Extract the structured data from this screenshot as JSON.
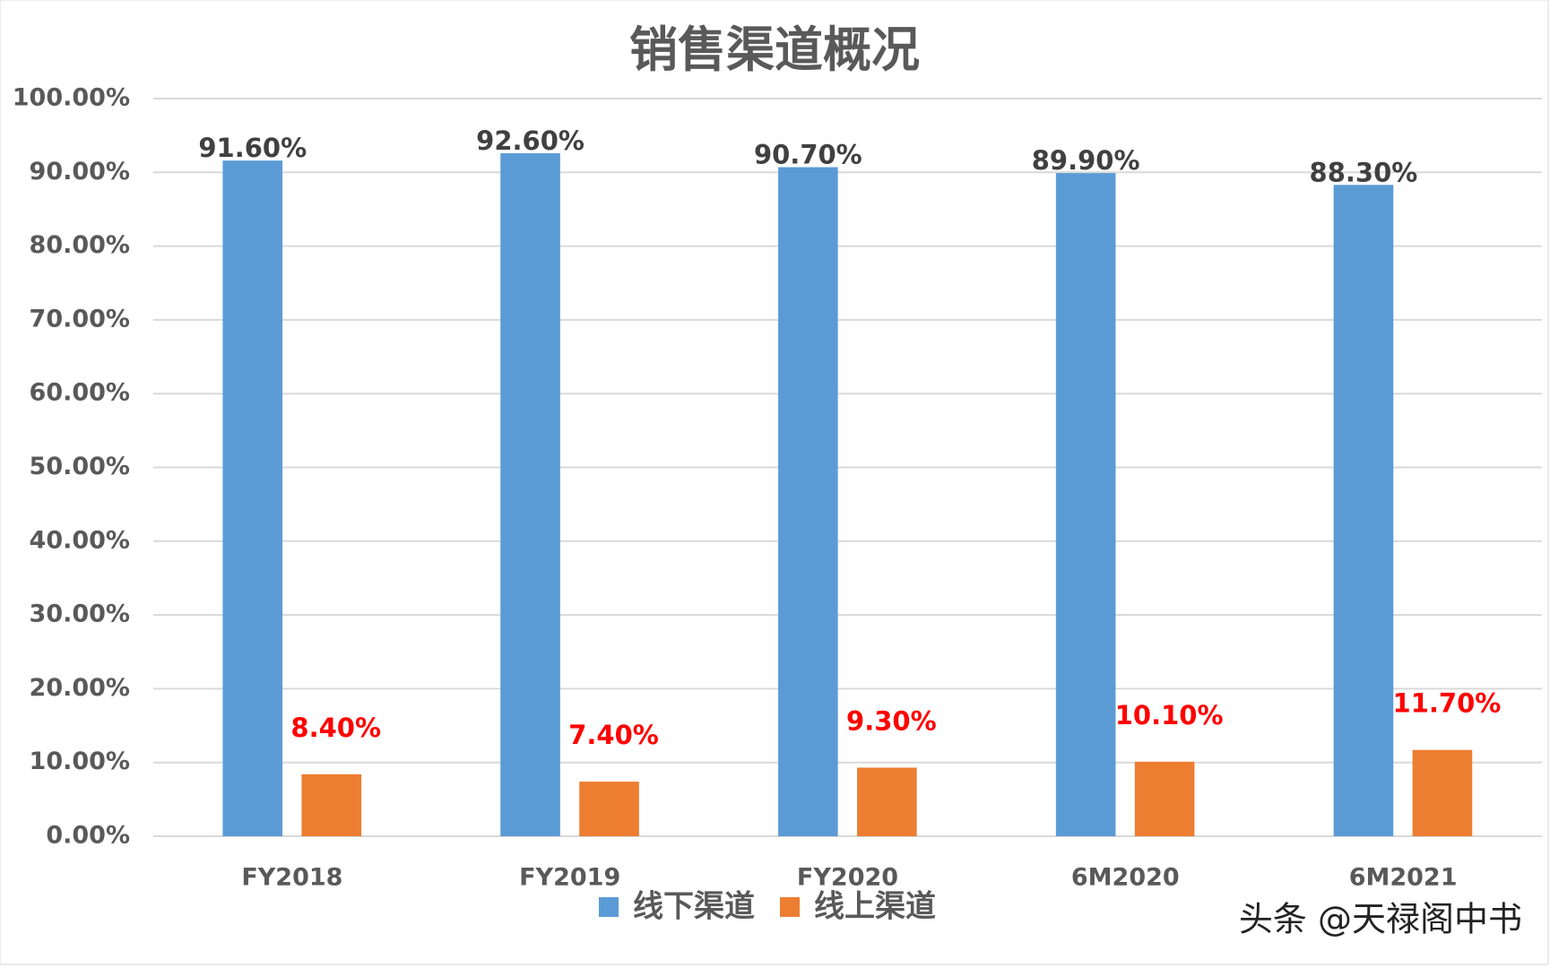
{
  "chart_data": {
    "type": "bar",
    "title": "销售渠道概况",
    "categories": [
      "FY2018",
      "FY2019",
      "FY2020",
      "6M2020",
      "6M2021"
    ],
    "series": [
      {
        "name": "线下渠道",
        "color": "#5b9bd5",
        "values": [
          91.6,
          92.6,
          90.7,
          89.9,
          88.3
        ],
        "value_labels": [
          "91.60%",
          "92.60%",
          "90.70%",
          "89.90%",
          "88.30%"
        ],
        "label_color": "#404040"
      },
      {
        "name": "线上渠道",
        "color": "#ed7d31",
        "values": [
          8.4,
          7.4,
          9.3,
          10.1,
          11.7
        ],
        "value_labels": [
          "8.40%",
          "7.40%",
          "9.30%",
          "10.10%",
          "11.70%"
        ],
        "label_color": "#ff0000"
      }
    ],
    "ylim": [
      0,
      100
    ],
    "yticks": [
      {
        "value": 0,
        "label": "0.00%"
      },
      {
        "value": 10,
        "label": "10.00%"
      },
      {
        "value": 20,
        "label": "20.00%"
      },
      {
        "value": 30,
        "label": "30.00%"
      },
      {
        "value": 40,
        "label": "40.00%"
      },
      {
        "value": 50,
        "label": "50.00%"
      },
      {
        "value": 60,
        "label": "60.00%"
      },
      {
        "value": 70,
        "label": "70.00%"
      },
      {
        "value": 80,
        "label": "80.00%"
      },
      {
        "value": 90,
        "label": "90.00%"
      },
      {
        "value": 100,
        "label": "100.00%"
      }
    ],
    "grid": true,
    "legend": "bottom",
    "watermark": "头条 @天禄阁中书"
  }
}
